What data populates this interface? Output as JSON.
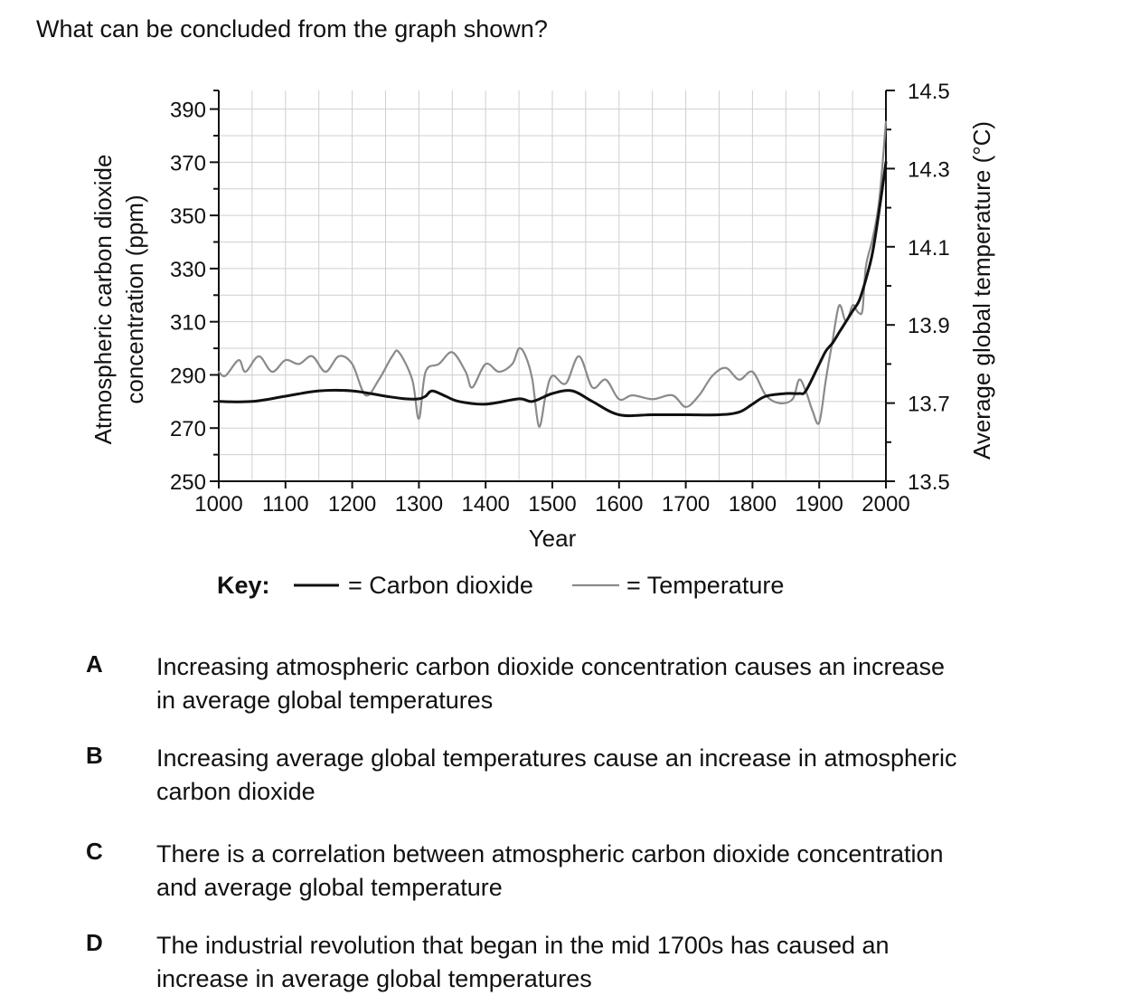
{
  "question": "What can be concluded from the graph shown?",
  "chart_data": {
    "type": "line",
    "xlabel": "Year",
    "ylabel_left": "Atmospheric carbon dioxide concentration (ppm)",
    "ylabel_left_lines": [
      "Atmospheric carbon dioxide",
      "concentration (ppm)"
    ],
    "ylabel_right": "Average global temperature (°C)",
    "xlim": [
      1000,
      2000
    ],
    "ylim_left": [
      250,
      390
    ],
    "ylim_right": [
      13.5,
      14.5
    ],
    "x_ticks": [
      1000,
      1100,
      1200,
      1300,
      1400,
      1500,
      1600,
      1700,
      1800,
      1900,
      2000
    ],
    "y_left_ticks": [
      250,
      270,
      290,
      310,
      330,
      350,
      370,
      390
    ],
    "y_right_ticks": [
      "13.5",
      "13.7",
      "13.9",
      "14.1",
      "14.3",
      "14.5"
    ],
    "grid": true,
    "legend": {
      "title": "Key:",
      "position": "bottom",
      "entries": [
        {
          "label": "= Carbon dioxide",
          "color": "#111111"
        },
        {
          "label": "= Temperature",
          "color": "#8a8a8a"
        }
      ]
    },
    "series": [
      {
        "axis": "left",
        "color": "#111111",
        "x": [
          1000,
          1050,
          1100,
          1150,
          1200,
          1250,
          1280,
          1300,
          1310,
          1320,
          1340,
          1360,
          1400,
          1450,
          1470,
          1500,
          1530,
          1560,
          1600,
          1650,
          1700,
          1750,
          1780,
          1800,
          1820,
          1850,
          1870,
          1880,
          1900,
          1910,
          1920,
          1930,
          1940,
          1950,
          1960,
          1970,
          1980,
          1990,
          2000
        ],
        "values": [
          280,
          280,
          282,
          284,
          284,
          282,
          281,
          281,
          282,
          284,
          282,
          280,
          279,
          281,
          280,
          283,
          284,
          280,
          275,
          275,
          275,
          275,
          276,
          279,
          282,
          283,
          283,
          284,
          294,
          299,
          302,
          306,
          310,
          314,
          318,
          326,
          336,
          352,
          370
        ]
      },
      {
        "axis": "right",
        "color": "#8a8a8a",
        "x": [
          1000,
          1010,
          1030,
          1040,
          1060,
          1080,
          1100,
          1120,
          1140,
          1160,
          1180,
          1200,
          1220,
          1240,
          1260,
          1270,
          1290,
          1300,
          1310,
          1330,
          1350,
          1370,
          1380,
          1400,
          1420,
          1440,
          1450,
          1460,
          1470,
          1480,
          1490,
          1500,
          1520,
          1540,
          1560,
          1580,
          1600,
          1620,
          1650,
          1680,
          1700,
          1720,
          1740,
          1760,
          1780,
          1800,
          1820,
          1840,
          1860,
          1870,
          1880,
          1890,
          1900,
          1910,
          1920,
          1930,
          1940,
          1950,
          1955,
          1960,
          1965,
          1970,
          1980,
          1990,
          2000
        ],
        "values": [
          13.78,
          13.77,
          13.81,
          13.78,
          13.82,
          13.78,
          13.81,
          13.8,
          13.82,
          13.78,
          13.82,
          13.8,
          13.72,
          13.76,
          13.82,
          13.83,
          13.76,
          13.66,
          13.78,
          13.8,
          13.83,
          13.78,
          13.74,
          13.8,
          13.78,
          13.8,
          13.84,
          13.82,
          13.76,
          13.64,
          13.72,
          13.77,
          13.75,
          13.82,
          13.74,
          13.76,
          13.71,
          13.72,
          13.71,
          13.72,
          13.69,
          13.72,
          13.77,
          13.79,
          13.76,
          13.78,
          13.72,
          13.7,
          13.71,
          13.76,
          13.73,
          13.68,
          13.65,
          13.76,
          13.86,
          13.95,
          13.91,
          13.95,
          13.94,
          13.93,
          13.94,
          14.05,
          14.12,
          14.22,
          14.42
        ]
      }
    ]
  },
  "options": [
    {
      "letter": "A",
      "text": "Increasing atmospheric carbon dioxide concentration causes an increase in average global temperatures"
    },
    {
      "letter": "B",
      "text": "Increasing average global temperatures cause an increase in atmospheric carbon dioxide"
    },
    {
      "letter": "C",
      "text": "There is a correlation between atmospheric carbon dioxide concentration and average global temperature"
    },
    {
      "letter": "D",
      "text": "The industrial revolution that began in the mid 1700s has caused an increase in average global temperatures"
    }
  ]
}
